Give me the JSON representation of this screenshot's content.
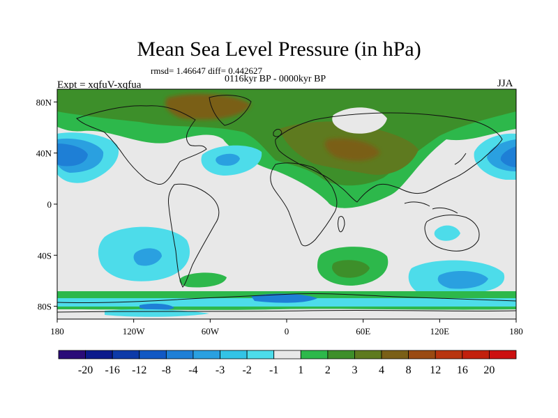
{
  "title": "Mean Sea Level Pressure (in hPa)",
  "stats_line": "rmsd= 1.46647 diff= 0.442627",
  "period_line": "0116kyr BP - 0000kyr BP",
  "experiment_label": "Expt = xqfuV-xqfua",
  "season_label": "JJA",
  "lon_ticks": [
    "180",
    "120W",
    "60W",
    "0",
    "60E",
    "120E",
    "180"
  ],
  "lat_ticks": [
    "80N",
    "40N",
    "0",
    "40S",
    "80S"
  ],
  "colorbar": {
    "labels": [
      "-20",
      "-16",
      "-12",
      "-8",
      "-4",
      "-3",
      "-2",
      "-1",
      "1",
      "2",
      "3",
      "4",
      "8",
      "12",
      "16",
      "20"
    ],
    "colors": [
      "#2a0b78",
      "#0b1a8c",
      "#0d3aa8",
      "#1158c4",
      "#1e7fd6",
      "#2aa0e0",
      "#33c4e6",
      "#4ddcea",
      "#e8e8e8",
      "#2db84b",
      "#3d8f2a",
      "#5e7a1f",
      "#7a5f17",
      "#9a4a12",
      "#b8350f",
      "#c2200c",
      "#cc1010"
    ]
  },
  "colors": {
    "background_field": "#e8e8e8",
    "coast": "#111111"
  }
}
